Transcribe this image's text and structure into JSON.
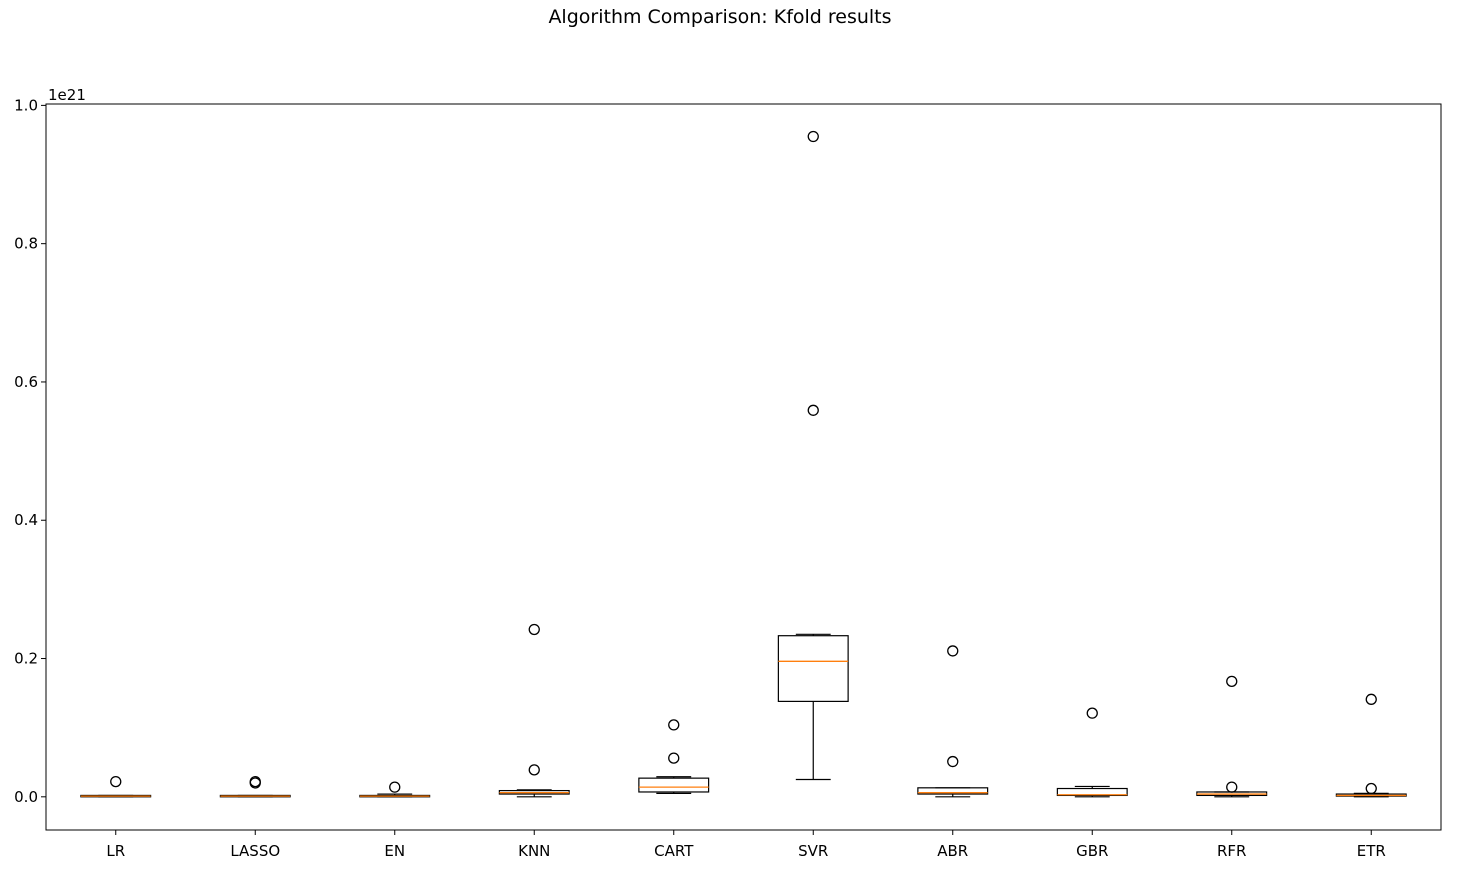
{
  "chart_data": {
    "type": "box",
    "title": "Algorithm Comparison: Kfold results",
    "xlabel": "",
    "ylabel": "",
    "y_offset_label": "1e21",
    "ylim": [
      -0.048,
      1.002
    ],
    "yticks": [
      0.0,
      0.2,
      0.4,
      0.6,
      0.8,
      1.0
    ],
    "ytick_labels": [
      "0.0",
      "0.2",
      "0.4",
      "0.6",
      "0.8",
      "1.0"
    ],
    "categories": [
      "LR",
      "LASSO",
      "EN",
      "KNN",
      "CART",
      "SVR",
      "ABR",
      "GBR",
      "RFR",
      "ETR"
    ],
    "boxes": [
      {
        "label": "LR",
        "whisker_low": 0.0,
        "q1": 0.0,
        "median": 0.001,
        "q3": 0.002,
        "whisker_high": 0.002,
        "fliers": [
          0.022
        ]
      },
      {
        "label": "LASSO",
        "whisker_low": 0.0,
        "q1": 0.0,
        "median": 0.001,
        "q3": 0.002,
        "whisker_high": 0.002,
        "fliers": [
          0.02,
          0.022
        ]
      },
      {
        "label": "EN",
        "whisker_low": 0.0,
        "q1": 0.0,
        "median": 0.001,
        "q3": 0.002,
        "whisker_high": 0.004,
        "fliers": [
          0.014
        ]
      },
      {
        "label": "KNN",
        "whisker_low": 0.0,
        "q1": 0.004,
        "median": 0.006,
        "q3": 0.009,
        "whisker_high": 0.01,
        "fliers": [
          0.039,
          0.242
        ]
      },
      {
        "label": "CART",
        "whisker_low": 0.005,
        "q1": 0.007,
        "median": 0.014,
        "q3": 0.027,
        "whisker_high": 0.029,
        "fliers": [
          0.056,
          0.104
        ]
      },
      {
        "label": "SVR",
        "whisker_low": 0.025,
        "q1": 0.138,
        "median": 0.196,
        "q3": 0.233,
        "whisker_high": 0.235,
        "fliers": [
          0.559,
          0.955
        ]
      },
      {
        "label": "ABR",
        "whisker_low": 0.0,
        "q1": 0.004,
        "median": 0.006,
        "q3": 0.013,
        "whisker_high": 0.013,
        "fliers": [
          0.051,
          0.211
        ]
      },
      {
        "label": "GBR",
        "whisker_low": 0.0,
        "q1": 0.002,
        "median": 0.003,
        "q3": 0.012,
        "whisker_high": 0.015,
        "fliers": [
          0.121
        ]
      },
      {
        "label": "RFR",
        "whisker_low": 0.0,
        "q1": 0.002,
        "median": 0.004,
        "q3": 0.007,
        "whisker_high": 0.007,
        "fliers": [
          0.014,
          0.167
        ]
      },
      {
        "label": "ETR",
        "whisker_low": 0.0,
        "q1": 0.001,
        "median": 0.002,
        "q3": 0.004,
        "whisker_high": 0.005,
        "fliers": [
          0.012,
          0.141
        ]
      }
    ],
    "grid": false,
    "colors": {
      "box": "#000000",
      "median": "#ff7f0e",
      "flier": "#000000"
    }
  }
}
